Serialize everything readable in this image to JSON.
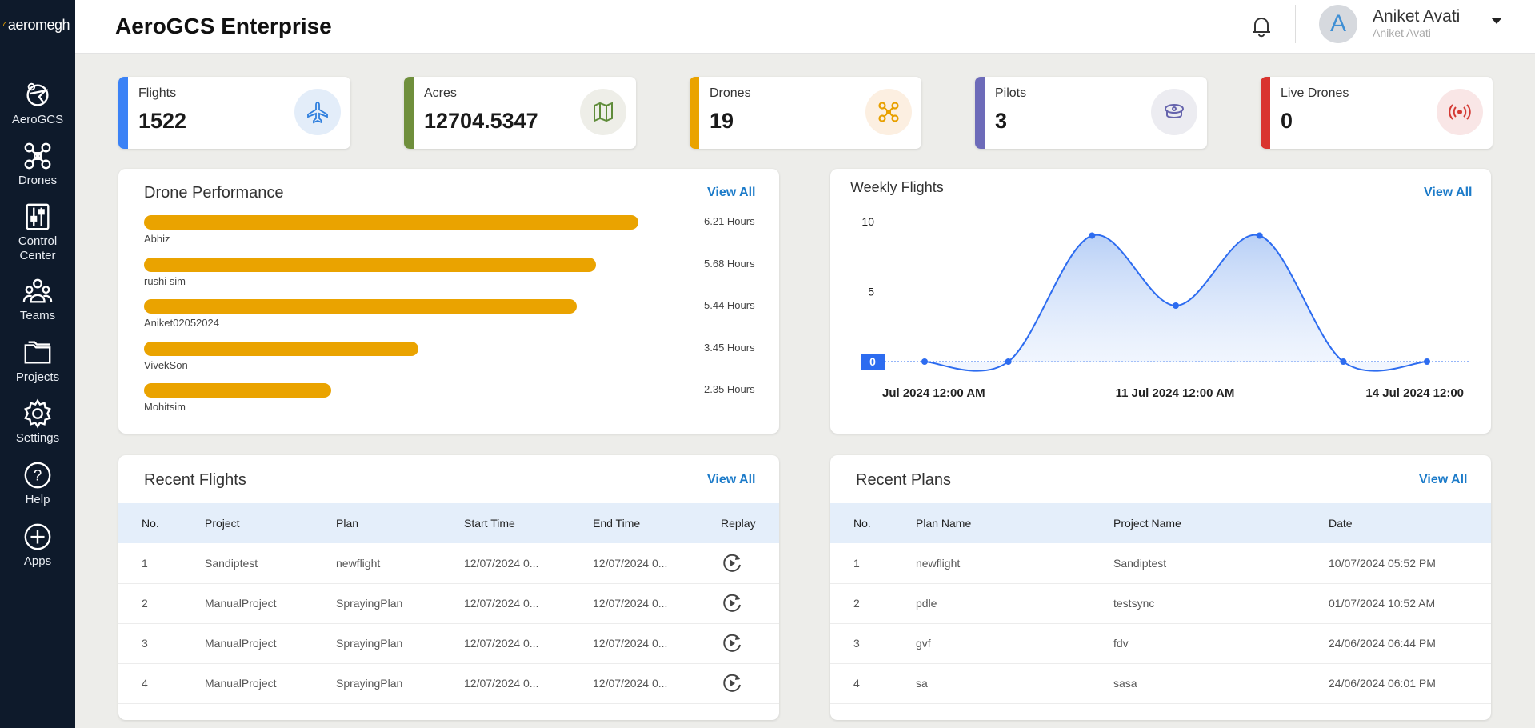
{
  "brand": {
    "name": "aeromegh"
  },
  "sidebar": {
    "items": [
      {
        "label": "AeroGCS",
        "icon": "aerogcs-logo-icon"
      },
      {
        "label": "Drones",
        "icon": "drone-icon"
      },
      {
        "label": "Control Center",
        "icon": "sliders-icon"
      },
      {
        "label": "Teams",
        "icon": "team-icon"
      },
      {
        "label": "Projects",
        "icon": "folder-icon"
      },
      {
        "label": "Settings",
        "icon": "gear-icon"
      },
      {
        "label": "Help",
        "icon": "help-icon"
      },
      {
        "label": "Apps",
        "icon": "plus-icon"
      }
    ]
  },
  "header": {
    "title": "AeroGCS Enterprise",
    "user": {
      "initial": "A",
      "name": "Aniket Avati",
      "subtitle": "Aniket Avati"
    }
  },
  "stats": [
    {
      "label": "Flights",
      "value": "1522",
      "color": "#3b82f6",
      "icon": "airplane-icon",
      "icon_bg": "#e3edf9",
      "icon_color": "#2f7fde"
    },
    {
      "label": "Acres",
      "value": "12704.5347",
      "color": "#6f8f3c",
      "icon": "map-icon",
      "icon_bg": "#eeeee8",
      "icon_color": "#5f8c3a"
    },
    {
      "label": "Drones",
      "value": "19",
      "color": "#eaa300",
      "icon": "drone-icon",
      "icon_bg": "#fcefe1",
      "icon_color": "#e8a000"
    },
    {
      "label": "Pilots",
      "value": "3",
      "color": "#6d6bb9",
      "icon": "pilot-icon",
      "icon_bg": "#ececf1",
      "icon_color": "#6664ad"
    },
    {
      "label": "Live Drones",
      "value": "0",
      "color": "#d9342f",
      "icon": "broadcast-icon",
      "icon_bg": "#f9e6e6",
      "icon_color": "#d43a34"
    }
  ],
  "performance": {
    "title": "Drone Performance",
    "view_all": "View All",
    "rows": [
      {
        "name": "Abhiz",
        "value_label": "6.21 Hours",
        "hours": 6.21
      },
      {
        "name": "rushi sim",
        "value_label": "5.68 Hours",
        "hours": 5.68
      },
      {
        "name": "Aniket02052024",
        "value_label": "5.44 Hours",
        "hours": 5.44
      },
      {
        "name": "VivekSon",
        "value_label": "3.45 Hours",
        "hours": 3.45
      },
      {
        "name": "Mohitsim",
        "value_label": "2.35 Hours",
        "hours": 2.35
      }
    ]
  },
  "weekly": {
    "title": "Weekly Flights",
    "view_all": "View All"
  },
  "chart_data": {
    "type": "area",
    "title": "Weekly Flights",
    "x_tick_labels": [
      "Jul 2024 12:00 AM",
      "11 Jul 2024 12:00 AM",
      "14 Jul 2024 12:00"
    ],
    "y_ticks": [
      0,
      5,
      10
    ],
    "ylim": [
      0,
      10
    ],
    "series": [
      {
        "values": [
          0,
          0,
          9,
          4,
          9,
          0,
          0
        ]
      }
    ],
    "color": "#2d6cf0",
    "highlight_label": "0"
  },
  "recent_flights": {
    "title": "Recent Flights",
    "view_all": "View All",
    "columns": [
      "No.",
      "Project",
      "Plan",
      "Start Time",
      "End Time",
      "Replay"
    ],
    "rows": [
      [
        "1",
        "Sandiptest",
        "newflight",
        "12/07/2024 0...",
        "12/07/2024 0..."
      ],
      [
        "2",
        "ManualProject",
        "SprayingPlan",
        "12/07/2024 0...",
        "12/07/2024 0..."
      ],
      [
        "3",
        "ManualProject",
        "SprayingPlan",
        "12/07/2024 0...",
        "12/07/2024 0..."
      ],
      [
        "4",
        "ManualProject",
        "SprayingPlan",
        "12/07/2024 0...",
        "12/07/2024 0..."
      ]
    ]
  },
  "recent_plans": {
    "title": "Recent Plans",
    "view_all": "View All",
    "columns": [
      "No.",
      "Plan Name",
      "Project Name",
      "Date"
    ],
    "rows": [
      [
        "1",
        "newflight",
        "Sandiptest",
        "10/07/2024 05:52 PM"
      ],
      [
        "2",
        "pdle",
        "testsync",
        "01/07/2024 10:52 AM"
      ],
      [
        "3",
        "gvf",
        "fdv",
        "24/06/2024 06:44 PM"
      ],
      [
        "4",
        "sa",
        "sasa",
        "24/06/2024 06:01 PM"
      ]
    ]
  }
}
